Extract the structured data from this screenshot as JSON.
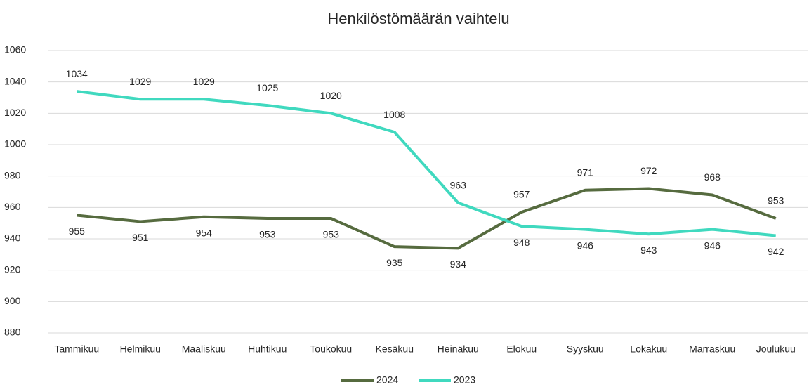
{
  "chart_data": {
    "type": "line",
    "title": "Henkilöstömäärän vaihtelu",
    "categories": [
      "Tammikuu",
      "Helmikuu",
      "Maaliskuu",
      "Huhtikuu",
      "Toukokuu",
      "Kesäkuu",
      "Heinäkuu",
      "Elokuu",
      "Syyskuu",
      "Lokakuu",
      "Marraskuu",
      "Joulukuu"
    ],
    "series": [
      {
        "name": "2024",
        "color": "#566b3f",
        "values": [
          955,
          951,
          954,
          953,
          953,
          935,
          934,
          957,
          971,
          972,
          968,
          953
        ]
      },
      {
        "name": "2023",
        "color": "#40d9bf",
        "values": [
          1034,
          1029,
          1029,
          1025,
          1020,
          1008,
          963,
          948,
          946,
          943,
          946,
          942
        ]
      }
    ],
    "ylim": [
      880,
      1060
    ],
    "yticks": [
      880,
      900,
      920,
      940,
      960,
      980,
      1000,
      1020,
      1040,
      1060
    ],
    "grid": true,
    "legend": "bottom"
  }
}
